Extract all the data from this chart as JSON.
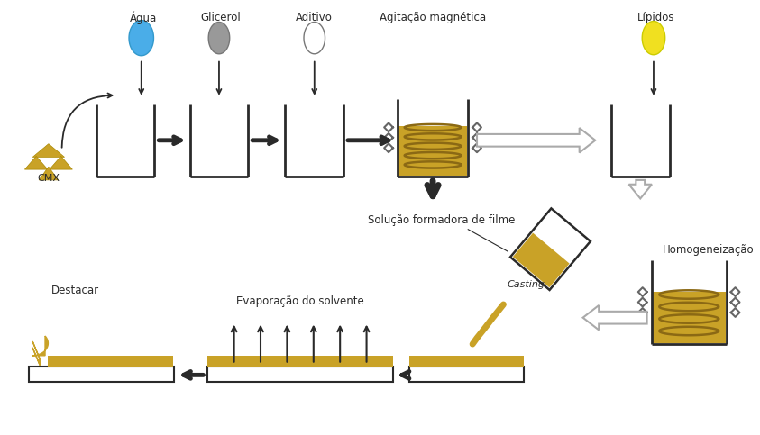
{
  "bg_color": "#ffffff",
  "gold_color": "#C9A227",
  "blue_color": "#4AADE8",
  "gray_color": "#999999",
  "white_color": "#ffffff",
  "yellow_color": "#F0E020",
  "dark_color": "#2a2a2a",
  "coil_color": "#8B6914",
  "vib_color": "#888888",
  "arrow_gray": "#aaaaaa",
  "labels": {
    "agua": "Água",
    "glicerol": "Glicerol",
    "aditivo": "Aditivo",
    "agitacao": "Agitação magnética",
    "lipidos": "Lípidos",
    "cmx": "CMX",
    "solucao": "Solução formadora de filme",
    "casting": "Casting",
    "evaporacao": "Evaporação do solvente",
    "destacar": "Destacar",
    "homogeneizacao": "Homogeneização"
  }
}
